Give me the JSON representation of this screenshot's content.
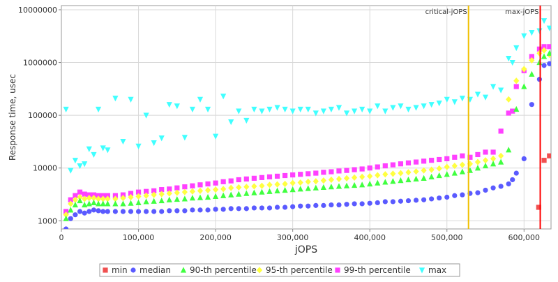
{
  "chart_data": {
    "type": "scatter",
    "title": "",
    "xlabel": "jOPS",
    "ylabel": "Response time, usec",
    "xlim": [
      0,
      635000
    ],
    "ylim": [
      700,
      12000000
    ],
    "y_scale": "log",
    "x_ticks": [
      {
        "value": 0,
        "label": "0"
      },
      {
        "value": 100000,
        "label": "100,000"
      },
      {
        "value": 200000,
        "label": "200,000"
      },
      {
        "value": 300000,
        "label": "300,000"
      },
      {
        "value": 400000,
        "label": "400,000"
      },
      {
        "value": 500000,
        "label": "500,000"
      },
      {
        "value": 600000,
        "label": "600,000"
      }
    ],
    "y_ticks": [
      {
        "value": 1000,
        "label": "1000"
      },
      {
        "value": 10000,
        "label": "10000"
      },
      {
        "value": 100000,
        "label": "100000"
      },
      {
        "value": 1000000,
        "label": "1000000"
      },
      {
        "value": 10000000,
        "label": "10000000"
      }
    ],
    "grid": true,
    "legend_position": "bottom",
    "markers": [
      {
        "name": "critical-jOPS",
        "x": 528000,
        "color": "#f0c000"
      },
      {
        "name": "max-jOPS",
        "x": 621000,
        "color": "#ff0000"
      }
    ],
    "series": [
      {
        "name": "min",
        "color": "#f05050",
        "marker": "square",
        "x": [
          619000,
          626000,
          633000
        ],
        "y": [
          1800,
          14000,
          17000
        ]
      },
      {
        "name": "median",
        "color": "#5a5aff",
        "marker": "circle",
        "x": [
          6000,
          12000,
          18000,
          24000,
          30000,
          36000,
          42000,
          48000,
          54000,
          60000,
          70000,
          80000,
          90000,
          100000,
          110000,
          120000,
          130000,
          140000,
          150000,
          160000,
          170000,
          180000,
          190000,
          200000,
          210000,
          220000,
          230000,
          240000,
          250000,
          260000,
          270000,
          280000,
          290000,
          300000,
          310000,
          320000,
          330000,
          340000,
          350000,
          360000,
          370000,
          380000,
          390000,
          400000,
          410000,
          420000,
          430000,
          440000,
          450000,
          460000,
          470000,
          480000,
          490000,
          500000,
          510000,
          520000,
          530000,
          540000,
          550000,
          560000,
          570000,
          580000,
          585000,
          590000,
          600000,
          610000,
          620000,
          626000,
          633000
        ],
        "y": [
          700,
          1100,
          1300,
          1500,
          1400,
          1500,
          1600,
          1550,
          1500,
          1500,
          1500,
          1500,
          1500,
          1500,
          1500,
          1500,
          1500,
          1550,
          1550,
          1550,
          1600,
          1600,
          1600,
          1650,
          1650,
          1700,
          1700,
          1700,
          1750,
          1750,
          1750,
          1800,
          1800,
          1850,
          1900,
          1900,
          1950,
          1950,
          2000,
          2000,
          2050,
          2100,
          2100,
          2150,
          2200,
          2300,
          2300,
          2350,
          2400,
          2450,
          2500,
          2600,
          2700,
          2800,
          3000,
          3100,
          3300,
          3400,
          3800,
          4200,
          4500,
          5000,
          6000,
          8000,
          15000,
          160000,
          480000,
          880000,
          950000
        ]
      },
      {
        "name": "90-th percentile",
        "color": "#40ff40",
        "marker": "triangle-up",
        "x": [
          6000,
          12000,
          18000,
          24000,
          30000,
          36000,
          42000,
          48000,
          54000,
          60000,
          70000,
          80000,
          90000,
          100000,
          110000,
          120000,
          130000,
          140000,
          150000,
          160000,
          170000,
          180000,
          190000,
          200000,
          210000,
          220000,
          230000,
          240000,
          250000,
          260000,
          270000,
          280000,
          290000,
          300000,
          310000,
          320000,
          330000,
          340000,
          350000,
          360000,
          370000,
          380000,
          390000,
          400000,
          410000,
          420000,
          430000,
          440000,
          450000,
          460000,
          470000,
          480000,
          490000,
          500000,
          510000,
          520000,
          530000,
          540000,
          550000,
          560000,
          570000,
          580000,
          590000,
          600000,
          610000,
          620000,
          626000,
          633000
        ],
        "y": [
          1100,
          1600,
          2000,
          2400,
          2000,
          2100,
          2200,
          2100,
          2100,
          2100,
          2100,
          2100,
          2150,
          2200,
          2300,
          2350,
          2400,
          2500,
          2550,
          2600,
          2700,
          2750,
          2800,
          2900,
          3000,
          3100,
          3200,
          3300,
          3400,
          3500,
          3600,
          3700,
          3800,
          3900,
          4000,
          4100,
          4200,
          4300,
          4400,
          4500,
          4600,
          4700,
          4800,
          5000,
          5200,
          5400,
          5600,
          5800,
          6000,
          6200,
          6400,
          6800,
          7200,
          7600,
          8000,
          8500,
          9000,
          10000,
          11000,
          12000,
          13000,
          22000,
          130000,
          350000,
          600000,
          1000000,
          1300000,
          1500000
        ]
      },
      {
        "name": "95-th percentile",
        "color": "#ffff40",
        "marker": "diamond",
        "x": [
          6000,
          12000,
          18000,
          24000,
          30000,
          36000,
          42000,
          48000,
          54000,
          60000,
          70000,
          80000,
          90000,
          100000,
          110000,
          120000,
          130000,
          140000,
          150000,
          160000,
          170000,
          180000,
          190000,
          200000,
          210000,
          220000,
          230000,
          240000,
          250000,
          260000,
          270000,
          280000,
          290000,
          300000,
          310000,
          320000,
          330000,
          340000,
          350000,
          360000,
          370000,
          380000,
          390000,
          400000,
          410000,
          420000,
          430000,
          440000,
          450000,
          460000,
          470000,
          480000,
          490000,
          500000,
          510000,
          520000,
          530000,
          540000,
          550000,
          560000,
          570000,
          580000,
          590000,
          600000,
          610000,
          620000,
          626000,
          633000
        ],
        "y": [
          1300,
          2100,
          2500,
          2800,
          2600,
          2700,
          2700,
          2600,
          2600,
          2600,
          2600,
          2700,
          2800,
          2900,
          3000,
          3100,
          3200,
          3300,
          3400,
          3500,
          3600,
          3700,
          3800,
          3900,
          4000,
          4200,
          4300,
          4400,
          4500,
          4600,
          4800,
          4900,
          5000,
          5200,
          5300,
          5500,
          5600,
          5800,
          6000,
          6200,
          6400,
          6600,
          6800,
          7000,
          7300,
          7600,
          7800,
          8000,
          8300,
          8600,
          9000,
          9300,
          9800,
          10500,
          11000,
          11500,
          12000,
          13000,
          14000,
          15000,
          17000,
          200000,
          450000,
          750000,
          1100000,
          1500000,
          1700000,
          1400000
        ]
      },
      {
        "name": "99-th percentile",
        "color": "#ff40ff",
        "marker": "square",
        "x": [
          6000,
          12000,
          18000,
          24000,
          30000,
          36000,
          42000,
          48000,
          54000,
          60000,
          70000,
          80000,
          90000,
          100000,
          110000,
          120000,
          130000,
          140000,
          150000,
          160000,
          170000,
          180000,
          190000,
          200000,
          210000,
          220000,
          230000,
          240000,
          250000,
          260000,
          270000,
          280000,
          290000,
          300000,
          310000,
          320000,
          330000,
          340000,
          350000,
          360000,
          370000,
          380000,
          390000,
          400000,
          410000,
          420000,
          430000,
          440000,
          450000,
          460000,
          470000,
          480000,
          490000,
          500000,
          510000,
          520000,
          530000,
          540000,
          550000,
          560000,
          570000,
          580000,
          585000,
          590000,
          600000,
          610000,
          620000,
          626000,
          633000
        ],
        "y": [
          1500,
          2500,
          3000,
          3500,
          3200,
          3100,
          3100,
          3000,
          3000,
          3000,
          3000,
          3100,
          3300,
          3500,
          3600,
          3700,
          3900,
          4000,
          4200,
          4400,
          4600,
          4800,
          5000,
          5200,
          5500,
          5700,
          6000,
          6200,
          6400,
          6600,
          6800,
          7000,
          7200,
          7400,
          7600,
          7800,
          8000,
          8300,
          8500,
          8800,
          9000,
          9300,
          9600,
          10000,
          10500,
          11000,
          11500,
          12000,
          12500,
          13000,
          13500,
          14000,
          14500,
          15000,
          16000,
          17000,
          16000,
          18000,
          20000,
          20000,
          50000,
          110000,
          120000,
          350000,
          700000,
          1300000,
          1800000,
          2000000,
          2000000
        ]
      },
      {
        "name": "max",
        "color": "#40ffff",
        "marker": "triangle-down",
        "x": [
          6000,
          12000,
          18000,
          24000,
          30000,
          36000,
          42000,
          48000,
          54000,
          60000,
          70000,
          80000,
          90000,
          100000,
          110000,
          120000,
          130000,
          140000,
          150000,
          160000,
          170000,
          180000,
          190000,
          200000,
          210000,
          220000,
          230000,
          240000,
          250000,
          260000,
          270000,
          280000,
          290000,
          300000,
          310000,
          320000,
          330000,
          340000,
          350000,
          360000,
          370000,
          380000,
          390000,
          400000,
          410000,
          420000,
          430000,
          440000,
          450000,
          460000,
          470000,
          480000,
          490000,
          500000,
          510000,
          520000,
          530000,
          540000,
          550000,
          560000,
          570000,
          580000,
          585000,
          590000,
          600000,
          610000,
          620000,
          626000,
          633000
        ],
        "y": [
          130000,
          9000,
          14000,
          11000,
          12000,
          23000,
          18000,
          130000,
          24000,
          22000,
          210000,
          32000,
          200000,
          26000,
          100000,
          30000,
          37000,
          160000,
          150000,
          38000,
          130000,
          200000,
          130000,
          40000,
          230000,
          75000,
          120000,
          80000,
          130000,
          120000,
          130000,
          140000,
          130000,
          120000,
          130000,
          130000,
          110000,
          120000,
          130000,
          140000,
          110000,
          120000,
          130000,
          120000,
          150000,
          120000,
          140000,
          150000,
          130000,
          140000,
          150000,
          160000,
          170000,
          200000,
          180000,
          210000,
          200000,
          250000,
          220000,
          350000,
          300000,
          1200000,
          1000000,
          1900000,
          3200000,
          3700000,
          4000000,
          6200000,
          4500000
        ]
      }
    ]
  }
}
